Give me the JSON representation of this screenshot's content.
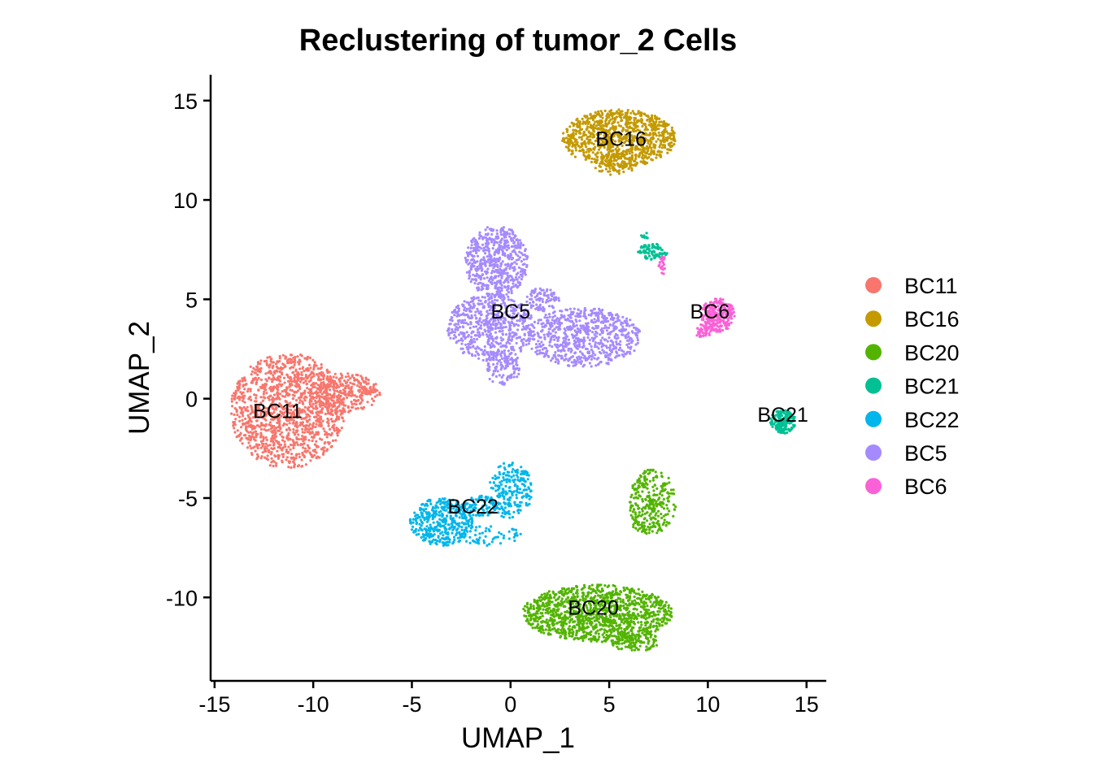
{
  "chart_data": {
    "type": "scatter",
    "title": "Reclustering of tumor_2 Cells",
    "xlabel": "UMAP_1",
    "ylabel": "UMAP_2",
    "xlim": [
      -15.2,
      16
    ],
    "ylim": [
      -14.2,
      16.3
    ],
    "xticks": [
      -15,
      -10,
      -5,
      0,
      5,
      10,
      15
    ],
    "yticks": [
      -10,
      -5,
      0,
      5,
      10,
      15
    ],
    "xtick_labels": [
      "-15",
      "-10",
      "-5",
      "0",
      "5",
      "10",
      "15"
    ],
    "ytick_labels": [
      "-10",
      "-5",
      "0",
      "5",
      "10",
      "15"
    ],
    "grid": false,
    "legend_position": "right",
    "series": [
      {
        "name": "BC11",
        "color": "#F8766D",
        "label_at": [
          -11.8,
          -0.6
        ],
        "regions": [
          {
            "cx": -11.3,
            "cy": -0.6,
            "rx": 2.9,
            "ry": 2.9,
            "n": 1300
          },
          {
            "cx": -8.4,
            "cy": 0.3,
            "rx": 1.8,
            "ry": 1.0,
            "n": 260
          },
          {
            "cx": -7.2,
            "cy": 0.4,
            "rx": 0.45,
            "ry": 0.2,
            "n": 30
          }
        ]
      },
      {
        "name": "BC16",
        "color": "#C49A00",
        "label_at": [
          5.6,
          13.1
        ],
        "regions": [
          {
            "cx": 5.5,
            "cy": 13.1,
            "rx": 2.9,
            "ry": 1.45,
            "n": 950
          },
          {
            "cx": 5.3,
            "cy": 11.8,
            "rx": 1.1,
            "ry": 0.55,
            "n": 70
          }
        ]
      },
      {
        "name": "BC20",
        "color": "#53B400",
        "label_at": [
          4.2,
          -10.5
        ],
        "regions": [
          {
            "cx": 4.4,
            "cy": -10.8,
            "rx": 3.8,
            "ry": 1.45,
            "n": 1250
          },
          {
            "cx": 6.3,
            "cy": -12.2,
            "rx": 1.2,
            "ry": 0.55,
            "n": 110
          },
          {
            "cx": 7.2,
            "cy": -5.2,
            "rx": 1.2,
            "ry": 1.65,
            "n": 280
          },
          {
            "cx": 6.6,
            "cy": -6.4,
            "rx": 0.4,
            "ry": 0.3,
            "n": 20
          }
        ]
      },
      {
        "name": "BC21",
        "color": "#00C094",
        "label_at": [
          13.8,
          -0.8
        ],
        "regions": [
          {
            "cx": 13.8,
            "cy": -1.15,
            "rx": 0.65,
            "ry": 0.6,
            "n": 170
          },
          {
            "cx": 7.2,
            "cy": 7.4,
            "rx": 0.75,
            "ry": 0.4,
            "n": 80
          },
          {
            "cx": 6.8,
            "cy": 8.2,
            "rx": 0.2,
            "ry": 0.2,
            "n": 10
          }
        ]
      },
      {
        "name": "BC22",
        "color": "#00B6EB",
        "label_at": [
          -1.9,
          -5.4
        ],
        "regions": [
          {
            "cx": -3.5,
            "cy": -6.2,
            "rx": 1.6,
            "ry": 1.2,
            "n": 400
          },
          {
            "cx": -1.4,
            "cy": -5.4,
            "rx": 0.9,
            "ry": 0.55,
            "n": 80
          },
          {
            "cx": 0.0,
            "cy": -4.6,
            "rx": 1.1,
            "ry": 1.45,
            "n": 220
          },
          {
            "cx": -1.0,
            "cy": -6.9,
            "rx": 1.6,
            "ry": 0.5,
            "n": 60
          }
        ]
      },
      {
        "name": "BC5",
        "color": "#A58AFF",
        "label_at": [
          0.0,
          4.4
        ],
        "regions": [
          {
            "cx": -0.7,
            "cy": 6.9,
            "rx": 1.6,
            "ry": 1.8,
            "n": 550
          },
          {
            "cx": -1.0,
            "cy": 3.6,
            "rx": 2.2,
            "ry": 1.7,
            "n": 600
          },
          {
            "cx": -0.4,
            "cy": 1.6,
            "rx": 0.9,
            "ry": 0.9,
            "n": 110
          },
          {
            "cx": 3.7,
            "cy": 3.1,
            "rx": 2.9,
            "ry": 1.5,
            "n": 700
          },
          {
            "cx": 1.6,
            "cy": 5.0,
            "rx": 0.9,
            "ry": 0.6,
            "n": 90
          }
        ]
      },
      {
        "name": "BC6",
        "color": "#FB61D7",
        "label_at": [
          10.1,
          4.4
        ],
        "regions": [
          {
            "cx": 10.5,
            "cy": 4.2,
            "rx": 0.85,
            "ry": 0.85,
            "n": 260
          },
          {
            "cx": 9.8,
            "cy": 3.4,
            "rx": 0.45,
            "ry": 0.35,
            "n": 40
          },
          {
            "cx": 7.7,
            "cy": 6.7,
            "rx": 0.2,
            "ry": 0.5,
            "n": 20
          }
        ]
      }
    ]
  }
}
